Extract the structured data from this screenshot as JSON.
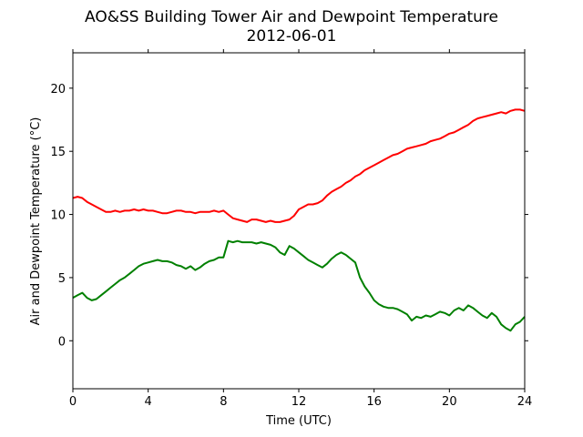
{
  "chart_data": {
    "type": "line",
    "title": "AO&SS Building Tower Air and Dewpoint Temperature",
    "subtitle": "2012-06-01",
    "xlabel": "Time (UTC)",
    "ylabel": "Air and Dewpoint Temperature (°C)",
    "xlim": [
      0,
      24
    ],
    "ylim": [
      -3.8,
      22.8
    ],
    "xticks": [
      0,
      4,
      8,
      12,
      16,
      20,
      24
    ],
    "yticks": [
      0,
      5,
      10,
      15,
      20
    ],
    "grid": false,
    "legend": "none",
    "series": [
      {
        "color": "#ff0000",
        "x": [
          0,
          0.25,
          0.5,
          0.75,
          1,
          1.25,
          1.5,
          1.75,
          2,
          2.25,
          2.5,
          2.75,
          3,
          3.25,
          3.5,
          3.75,
          4,
          4.25,
          4.5,
          4.75,
          5,
          5.25,
          5.5,
          5.75,
          6,
          6.25,
          6.5,
          6.75,
          7,
          7.25,
          7.5,
          7.75,
          8,
          8.25,
          8.5,
          8.75,
          9,
          9.25,
          9.5,
          9.75,
          10,
          10.25,
          10.5,
          10.75,
          11,
          11.25,
          11.5,
          11.75,
          12,
          12.25,
          12.5,
          12.75,
          13,
          13.25,
          13.5,
          13.75,
          14,
          14.25,
          14.5,
          14.75,
          15,
          15.25,
          15.5,
          15.75,
          16,
          16.25,
          16.5,
          16.75,
          17,
          17.25,
          17.5,
          17.75,
          18,
          18.25,
          18.5,
          18.75,
          19,
          19.25,
          19.5,
          19.75,
          20,
          20.25,
          20.5,
          20.75,
          21,
          21.25,
          21.5,
          21.75,
          22,
          22.25,
          22.5,
          22.75,
          23,
          23.25,
          23.5,
          23.75,
          24
        ],
        "y": [
          11.3,
          11.4,
          11.3,
          11.0,
          10.8,
          10.6,
          10.4,
          10.2,
          10.2,
          10.3,
          10.2,
          10.3,
          10.3,
          10.4,
          10.3,
          10.4,
          10.3,
          10.3,
          10.2,
          10.1,
          10.1,
          10.2,
          10.3,
          10.3,
          10.2,
          10.2,
          10.1,
          10.2,
          10.2,
          10.2,
          10.3,
          10.2,
          10.3,
          10.0,
          9.7,
          9.6,
          9.5,
          9.4,
          9.6,
          9.6,
          9.5,
          9.4,
          9.5,
          9.4,
          9.4,
          9.5,
          9.6,
          9.9,
          10.4,
          10.6,
          10.8,
          10.8,
          10.9,
          11.1,
          11.5,
          11.8,
          12.0,
          12.2,
          12.5,
          12.7,
          13.0,
          13.2,
          13.5,
          13.7,
          13.9,
          14.1,
          14.3,
          14.5,
          14.7,
          14.8,
          15.0,
          15.2,
          15.3,
          15.4,
          15.5,
          15.6,
          15.8,
          15.9,
          16.0,
          16.2,
          16.4,
          16.5,
          16.7,
          16.9,
          17.1,
          17.4,
          17.6,
          17.7,
          17.8,
          17.9,
          18.0,
          18.1,
          18.0,
          18.2,
          18.3,
          18.3,
          18.2
        ]
      },
      {
        "color": "#008000",
        "x": [
          0,
          0.25,
          0.5,
          0.75,
          1,
          1.25,
          1.5,
          1.75,
          2,
          2.25,
          2.5,
          2.75,
          3,
          3.25,
          3.5,
          3.75,
          4,
          4.25,
          4.5,
          4.75,
          5,
          5.25,
          5.5,
          5.75,
          6,
          6.25,
          6.5,
          6.75,
          7,
          7.25,
          7.5,
          7.75,
          8,
          8.25,
          8.5,
          8.75,
          9,
          9.25,
          9.5,
          9.75,
          10,
          10.25,
          10.5,
          10.75,
          11,
          11.25,
          11.5,
          11.75,
          12,
          12.25,
          12.5,
          12.75,
          13,
          13.25,
          13.5,
          13.75,
          14,
          14.25,
          14.5,
          14.75,
          15,
          15.25,
          15.5,
          15.75,
          16,
          16.25,
          16.5,
          16.75,
          17,
          17.25,
          17.5,
          17.75,
          18,
          18.25,
          18.5,
          18.75,
          19,
          19.25,
          19.5,
          19.75,
          20,
          20.25,
          20.5,
          20.75,
          21,
          21.25,
          21.5,
          21.75,
          22,
          22.25,
          22.5,
          22.75,
          23,
          23.25,
          23.5,
          23.75,
          24
        ],
        "y": [
          3.4,
          3.6,
          3.8,
          3.4,
          3.2,
          3.3,
          3.6,
          3.9,
          4.2,
          4.5,
          4.8,
          5.0,
          5.3,
          5.6,
          5.9,
          6.1,
          6.2,
          6.3,
          6.4,
          6.3,
          6.3,
          6.2,
          6.0,
          5.9,
          5.7,
          5.9,
          5.6,
          5.8,
          6.1,
          6.3,
          6.4,
          6.6,
          6.6,
          7.9,
          7.8,
          7.9,
          7.8,
          7.8,
          7.8,
          7.7,
          7.8,
          7.7,
          7.6,
          7.4,
          7.0,
          6.8,
          7.5,
          7.3,
          7.0,
          6.7,
          6.4,
          6.2,
          6.0,
          5.8,
          6.1,
          6.5,
          6.8,
          7.0,
          6.8,
          6.5,
          6.2,
          5.0,
          4.3,
          3.8,
          3.2,
          2.9,
          2.7,
          2.6,
          2.6,
          2.5,
          2.3,
          2.1,
          1.6,
          1.9,
          1.8,
          2.0,
          1.9,
          2.1,
          2.3,
          2.2,
          2.0,
          2.4,
          2.6,
          2.4,
          2.8,
          2.6,
          2.3,
          2.0,
          1.8,
          2.2,
          1.9,
          1.3,
          1.0,
          0.8,
          1.3,
          1.5,
          1.9
        ]
      }
    ]
  }
}
